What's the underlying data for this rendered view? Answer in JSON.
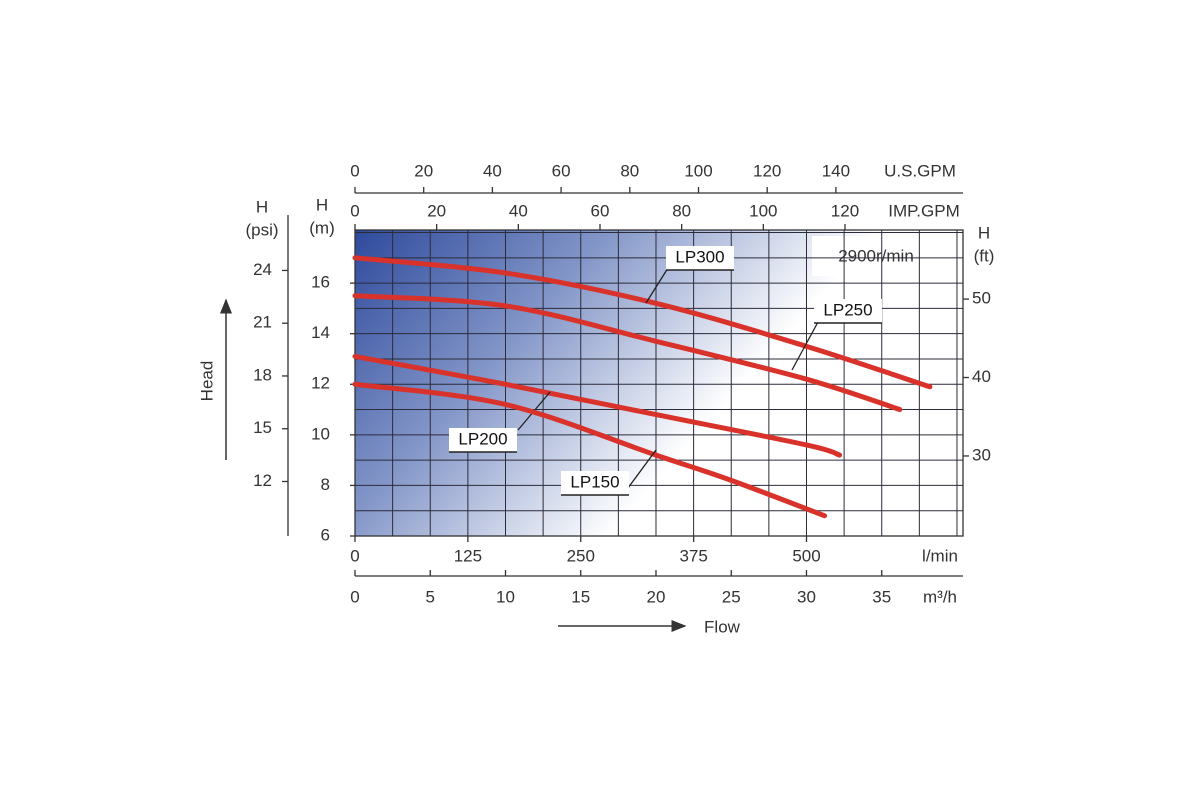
{
  "chart_data": {
    "type": "line",
    "xlabel": "Flow",
    "ylabel": "Head",
    "annotation": "2900r/min",
    "xunit": "m³/h",
    "ylabel_top": "H",
    "yunit": "(m)",
    "xlim": [
      0,
      40.4
    ],
    "xticks": [
      0,
      5,
      10,
      15,
      20,
      25,
      30,
      35
    ],
    "xgrid": [
      0,
      2.5,
      5,
      7.5,
      10,
      12.5,
      15,
      17.5,
      20,
      22.5,
      25,
      27.5,
      30,
      32.5,
      35,
      37.5,
      40
    ],
    "ylim": [
      6,
      18.1
    ],
    "yticks": [
      6,
      8,
      10,
      12,
      14,
      16
    ],
    "ygrid": [
      6,
      7,
      8,
      9,
      10,
      11,
      12,
      13,
      14,
      15,
      16,
      17,
      18
    ],
    "grid": true,
    "secondary_axes": [
      {
        "unit": "l/min",
        "lim": [
          0,
          673.3
        ],
        "ticks": [
          0,
          125,
          250,
          375,
          500
        ]
      },
      {
        "unit": "U.S.GPM",
        "lim": [
          0,
          177
        ],
        "ticks": [
          0,
          20,
          40,
          60,
          80,
          100,
          120,
          140
        ]
      },
      {
        "unit": "IMP.GPM",
        "lim": [
          0,
          148.9
        ],
        "ticks": [
          0,
          20,
          40,
          60,
          80,
          100,
          120
        ]
      },
      {
        "label": "H",
        "unit": "(psi)",
        "lim": [
          8.9,
          26.3
        ],
        "ticks": [
          12,
          15,
          18,
          21,
          24
        ]
      },
      {
        "label": "H",
        "unit": "(ft)",
        "lim": [
          19.8,
          58.8
        ],
        "ticks": [
          30,
          40,
          50
        ]
      }
    ],
    "series": [
      {
        "name": "LP300",
        "color": "#d8322b",
        "x": [
          0,
          10,
          20,
          30,
          38.2
        ],
        "values": [
          17.0,
          16.4,
          15.2,
          13.5,
          11.9
        ]
      },
      {
        "name": "LP250",
        "color": "#d8322b",
        "x": [
          0,
          10,
          20,
          30,
          36.2
        ],
        "values": [
          15.5,
          15.1,
          13.7,
          12.2,
          11.0
        ]
      },
      {
        "name": "LP200",
        "color": "#d8322b",
        "x": [
          0,
          10,
          20,
          30,
          32.2
        ],
        "values": [
          13.1,
          12.0,
          10.8,
          9.6,
          9.2
        ]
      },
      {
        "name": "LP150",
        "color": "#d8322b",
        "x": [
          0,
          10,
          20,
          25,
          31.2
        ],
        "values": [
          12.0,
          11.2,
          9.2,
          8.2,
          6.8
        ]
      }
    ]
  }
}
